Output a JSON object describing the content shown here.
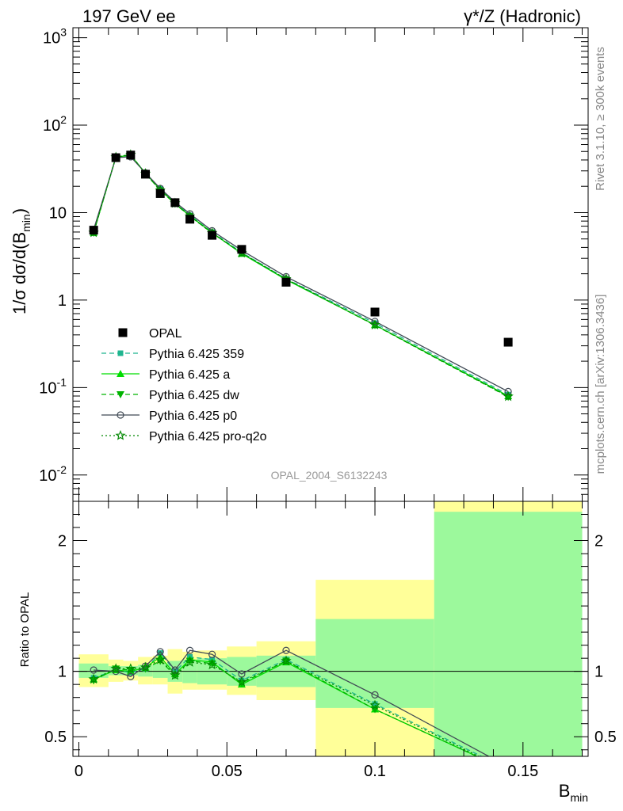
{
  "header": {
    "left": "197 GeV ee",
    "right": "γ*/Z (Hadronic)"
  },
  "side_labels": {
    "rivet": "Rivet 3.1.10, ≥ 300k events",
    "mcplots": "mcplots.cern.ch [arXiv:1306.3436]"
  },
  "analysis_id": "OPAL_2004_S6132243",
  "axes": {
    "y_main": "1/σ dσ/d(B",
    "y_main_sub": "min",
    "y_main_tail": ")",
    "y_ratio": "Ratio to OPAL",
    "x": "B",
    "x_sub": "min"
  },
  "legend": [
    {
      "label": "OPAL"
    },
    {
      "label": "Pythia 6.425 359"
    },
    {
      "label": "Pythia 6.425 a"
    },
    {
      "label": "Pythia 6.425 dw"
    },
    {
      "label": "Pythia 6.425 p0"
    },
    {
      "label": "Pythia 6.425 pro-q2o"
    }
  ],
  "colors": {
    "data": "#000000",
    "p359": "#1fb58f",
    "pa": "#00dd00",
    "pdw": "#00b300",
    "pp0": "#404a55",
    "pq2o": "#008800",
    "band_inner": "#9cf99c",
    "band_outer": "#ffff99"
  },
  "chart_data": {
    "type": "line",
    "title": "197 GeV ee",
    "xlabel": "B_min",
    "ylabel": "1/σ dσ/d(B_min)",
    "ylabel_ratio": "Ratio to OPAL",
    "x_scale": "linear",
    "y_scale": "log",
    "xlim": [
      -0.002,
      0.172
    ],
    "ylim": [
      0.005,
      1300
    ],
    "ratio_ylim": [
      0.35,
      2.3
    ],
    "x_ticks": [
      "0",
      "0.05",
      "0.1",
      "0.15"
    ],
    "y_ticks": [
      "10^-2",
      "10^-1",
      "1",
      "10",
      "10^2",
      "10^3"
    ],
    "ratio_ticks": [
      "0.5",
      "1",
      "2"
    ],
    "legend_position": "lower-left",
    "x": [
      0.005,
      0.0125,
      0.0175,
      0.0225,
      0.0275,
      0.0325,
      0.0375,
      0.045,
      0.055,
      0.07,
      0.1,
      0.145
    ],
    "bins": [
      [
        0,
        0.01
      ],
      [
        0.01,
        0.015
      ],
      [
        0.015,
        0.02
      ],
      [
        0.02,
        0.025
      ],
      [
        0.025,
        0.03
      ],
      [
        0.03,
        0.035
      ],
      [
        0.035,
        0.04
      ],
      [
        0.04,
        0.05
      ],
      [
        0.05,
        0.06
      ],
      [
        0.06,
        0.08
      ],
      [
        0.08,
        0.12
      ],
      [
        0.12,
        0.17
      ]
    ],
    "data": {
      "name": "OPAL",
      "values": [
        6.3,
        42.5,
        45.5,
        27.5,
        16.5,
        13.0,
        8.4,
        5.5,
        3.8,
        1.6,
        0.73,
        0.33
      ]
    },
    "band_inner": [
      [
        0.95,
        1.06
      ],
      [
        0.97,
        1.04
      ],
      [
        0.97,
        1.04
      ],
      [
        0.96,
        1.05
      ],
      [
        0.95,
        1.06
      ],
      [
        0.92,
        1.08
      ],
      [
        0.91,
        1.09
      ],
      [
        0.9,
        1.1
      ],
      [
        0.89,
        1.11
      ],
      [
        0.88,
        1.12
      ],
      [
        0.72,
        1.4
      ],
      [
        0.33,
        2.22
      ]
    ],
    "band_outer": [
      [
        0.88,
        1.13
      ],
      [
        0.92,
        1.09
      ],
      [
        0.93,
        1.08
      ],
      [
        0.9,
        1.11
      ],
      [
        0.9,
        1.12
      ],
      [
        0.83,
        1.17
      ],
      [
        0.86,
        1.15
      ],
      [
        0.86,
        1.16
      ],
      [
        0.82,
        1.19
      ],
      [
        0.78,
        1.23
      ],
      [
        0.33,
        1.7
      ],
      [
        0.33,
        2.4
      ]
    ],
    "series": [
      {
        "name": "Pythia 6.425 359",
        "key": "p359",
        "marker": "square",
        "dash": "6,4",
        "values": [
          6.0,
          43.0,
          45.0,
          28.0,
          18.8,
          13.0,
          9.3,
          6.0,
          3.5,
          1.75,
          0.545,
          0.083
        ],
        "ratio": [
          0.95,
          1.01,
          0.99,
          1.02,
          1.14,
          1.0,
          1.11,
          1.09,
          0.93,
          1.09,
          0.75,
          0.25
        ]
      },
      {
        "name": "Pythia 6.425 a",
        "key": "pa",
        "marker": "triangle-up",
        "dash": "",
        "values": [
          5.9,
          43.0,
          45.5,
          28.2,
          18.3,
          12.7,
          9.2,
          5.9,
          3.4,
          1.71,
          0.52,
          0.08
        ],
        "ratio": [
          0.94,
          1.01,
          1.0,
          1.03,
          1.11,
          0.98,
          1.09,
          1.07,
          0.9,
          1.07,
          0.71,
          0.24
        ]
      },
      {
        "name": "Pythia 6.425 dw",
        "key": "pdw",
        "marker": "triangle-down",
        "dash": "6,4",
        "values": [
          5.85,
          43.5,
          46.0,
          28.0,
          17.9,
          12.6,
          9.1,
          5.85,
          3.45,
          1.73,
          0.515,
          0.078
        ],
        "ratio": [
          0.93,
          1.02,
          1.01,
          1.02,
          1.08,
          0.97,
          1.08,
          1.06,
          0.91,
          1.08,
          0.71,
          0.24
        ]
      },
      {
        "name": "Pythia 6.425 p0",
        "key": "pp0",
        "marker": "circle",
        "dash": "",
        "values": [
          6.4,
          42.5,
          43.5,
          28.5,
          18.9,
          13.2,
          9.7,
          6.2,
          3.7,
          1.85,
          0.57,
          0.09
        ],
        "ratio": [
          1.01,
          1.0,
          0.96,
          1.04,
          1.15,
          1.01,
          1.16,
          1.13,
          0.98,
          1.16,
          0.82,
          0.27
        ]
      },
      {
        "name": "Pythia 6.425 pro-q2o",
        "key": "pq2o",
        "marker": "star",
        "dash": "2,3",
        "values": [
          5.9,
          43.0,
          46.0,
          28.0,
          18.0,
          12.8,
          9.1,
          5.85,
          3.45,
          1.74,
          0.52,
          0.079
        ],
        "ratio": [
          0.94,
          1.02,
          1.02,
          1.03,
          1.09,
          0.97,
          1.07,
          1.05,
          0.92,
          1.08,
          0.74,
          0.24
        ]
      }
    ]
  }
}
